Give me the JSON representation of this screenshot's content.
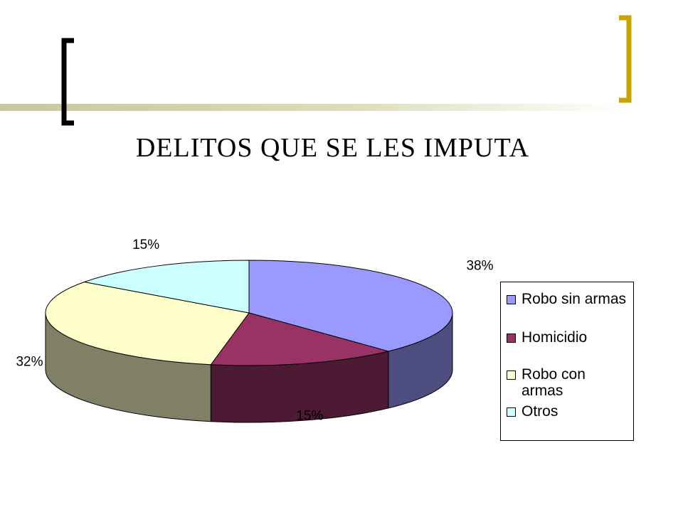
{
  "chart_data": {
    "type": "pie",
    "title": "DELITOS QUE SE LES IMPUTA",
    "categories": [
      "Robo sin armas",
      "Homicidio",
      "Robo con armas",
      "Otros"
    ],
    "values": [
      38,
      15,
      32,
      15
    ],
    "data_labels": [
      "38%",
      "15%",
      "32%",
      "15%"
    ],
    "colors": [
      "#9999ff",
      "#993366",
      "#ffffcc",
      "#ccffff"
    ],
    "legend_position": "right",
    "style": "3d"
  },
  "decor": {
    "bracket_left_color": "#000000",
    "bracket_right_color": "#c9a400",
    "bar_color": "#cfcfa0"
  }
}
